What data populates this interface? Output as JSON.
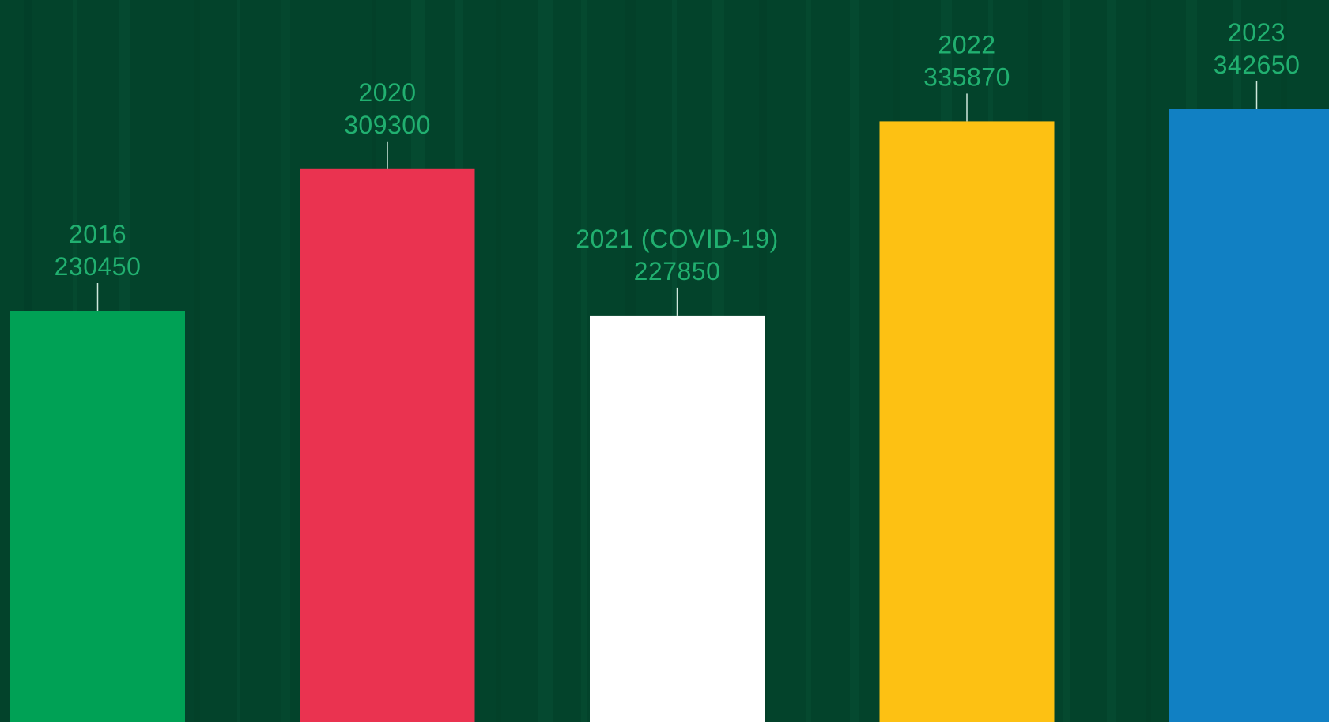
{
  "chart_data": {
    "type": "bar",
    "categories": [
      "2016",
      "2020",
      "2021 (COVID-19)",
      "2022",
      "2023"
    ],
    "values": [
      230450,
      309300,
      227850,
      335870,
      342650
    ],
    "title": "",
    "xlabel": "",
    "ylabel": "",
    "grid": false,
    "legend": "none"
  },
  "colors": {
    "background": "#03432b",
    "stripe_light": "#0b5a3a",
    "stripe_dark": "#023a25",
    "label": "#21b070",
    "leader": "#cfe8dc",
    "bars": [
      "#00a155",
      "#ea3350",
      "#ffffff",
      "#fdc113",
      "#1180c3"
    ]
  }
}
